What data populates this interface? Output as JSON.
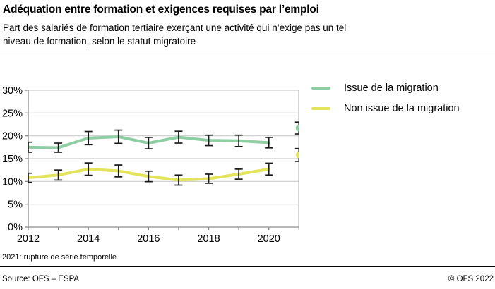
{
  "header": {
    "title": "Adéquation entre formation et exigences requises par l’emploi",
    "subtitle_lines": [
      "Part des salariés de formation tertiaire exerçant une activité qui n’exige pas un tel",
      "niveau de formation, selon le statut migratoire"
    ]
  },
  "footnote": "2021: rupture de série temporelle",
  "footer": {
    "source": "Source: OFS – ESPA",
    "copyright": "© OFS 2022"
  },
  "chart_data": {
    "type": "line",
    "title": "Adéquation entre formation et exigences requises par l’emploi",
    "x": [
      2012,
      2013,
      2014,
      2015,
      2016,
      2017,
      2018,
      2019,
      2020,
      2021
    ],
    "x_tick_label_years": [
      2012,
      2014,
      2016,
      2018,
      2020
    ],
    "ylim": [
      0,
      30
    ],
    "y_ticks": [
      0,
      5,
      10,
      15,
      20,
      25,
      30
    ],
    "y_tick_suffix": "%",
    "unit": "percent",
    "grid": true,
    "error_bars": true,
    "legend_position": "right",
    "series_break_year": 2021,
    "series_break_note": "2021: rupture de série temporelle",
    "series": [
      {
        "name": "Issue de la migration",
        "color": "#8FCEA3",
        "values": [
          17.5,
          17.4,
          19.5,
          19.8,
          18.4,
          19.7,
          19.0,
          18.9,
          18.5,
          21.7
        ],
        "errors_plus_minus": [
          1.1,
          1.0,
          1.45,
          1.45,
          1.25,
          1.3,
          1.15,
          1.25,
          1.15,
          1.3
        ]
      },
      {
        "name": "Non issue de la migration",
        "color": "#E3E45A",
        "values": [
          10.8,
          11.4,
          12.7,
          12.3,
          11.1,
          10.3,
          10.6,
          11.6,
          12.7,
          15.8
        ],
        "errors_plus_minus": [
          1.0,
          1.1,
          1.35,
          1.3,
          1.15,
          1.1,
          1.0,
          1.1,
          1.3,
          1.4
        ]
      }
    ],
    "colors": {
      "axis": "#8c8c8c",
      "grid": "#cccccc",
      "error_bar": "#1a1a1a",
      "text": "#000000"
    }
  }
}
